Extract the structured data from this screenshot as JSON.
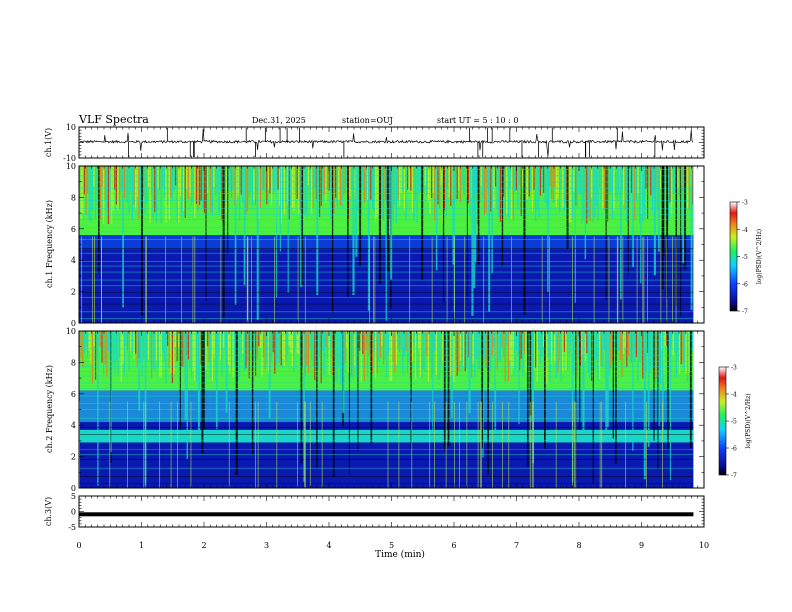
{
  "header": {
    "title": "VLF Spectra",
    "date": "Dec.31, 2025",
    "station": "station=OUJ",
    "start": "start  UT =   5 : 10 : 0"
  },
  "chart_data": [
    {
      "type": "line",
      "ylabel": "ch.1(V)",
      "ylim": [
        -10,
        10
      ],
      "ytick_labels": [
        "10",
        "-10"
      ],
      "x_range_min": [
        0,
        9.83
      ],
      "baseline": 0.5
    },
    {
      "type": "heatmap",
      "ylabel": "ch.1 Frequency (kHz)",
      "ylim": [
        0,
        10
      ],
      "ytick_labels": [
        "0",
        "2",
        "4",
        "6",
        "8",
        "10"
      ],
      "colorbar": {
        "label": "log(PSD)(V^2/Hz)",
        "range": [
          -7,
          -3
        ],
        "tick_labels": [
          "-3",
          "-4",
          "-5",
          "-6",
          "-7"
        ]
      }
    },
    {
      "type": "heatmap",
      "ylabel": "ch.2 Frequency (kHz)",
      "ylim": [
        0,
        10
      ],
      "ytick_labels": [
        "0",
        "2",
        "4",
        "6",
        "8",
        "10"
      ],
      "colorbar": {
        "label": "log(PSD)(V^2/Hz)",
        "range": [
          -7,
          -3
        ],
        "tick_labels": [
          "-3",
          "-4",
          "-5",
          "-6",
          "-7"
        ]
      }
    },
    {
      "type": "line",
      "ylabel": "ch.3(V)",
      "ylim": [
        -5,
        5
      ],
      "ytick_labels": [
        "5",
        "0",
        "-5"
      ],
      "baseline": -0.9
    }
  ],
  "xaxis": {
    "label": "Time  (min)",
    "xlim": [
      0,
      10
    ],
    "tick_labels": [
      "0",
      "1",
      "2",
      "3",
      "4",
      "5",
      "6",
      "7",
      "8",
      "9",
      "10"
    ]
  },
  "colors": {
    "bg_low": "#0a1ab0",
    "bg_mid": "#1ad6c8",
    "high": "#4cf040",
    "hot": "#f07820",
    "peak": "#d81818"
  }
}
